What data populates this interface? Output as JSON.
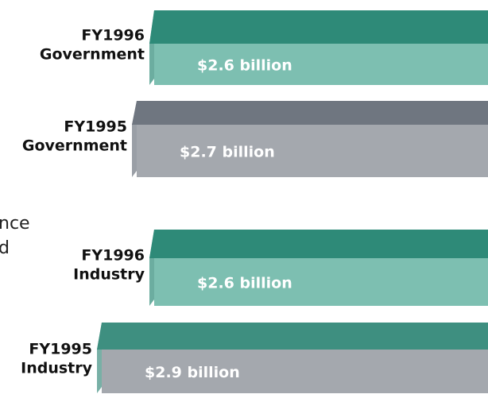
{
  "chart_data": {
    "type": "bar3d",
    "categories": [
      [
        "FY1996",
        "Government"
      ],
      [
        "FY1995",
        "Government"
      ],
      [
        "FY1996",
        "Industry"
      ],
      [
        "FY1995",
        "Industry"
      ]
    ],
    "values": [
      2.6,
      2.7,
      2.6,
      2.9
    ],
    "value_labels": [
      "$2.6 billion",
      "$2.7 billion",
      "$2.6 billion",
      "$2.9 billion"
    ],
    "colors": [
      "#7dbfb1",
      "#a4a8ae",
      "#7dbfb1",
      "#a4a8ae"
    ],
    "top_colors": [
      "#2e8a78",
      "#6f7680",
      "#2e8a78",
      "#3e8f80"
    ],
    "annotations": [
      "nce",
      "d"
    ]
  }
}
